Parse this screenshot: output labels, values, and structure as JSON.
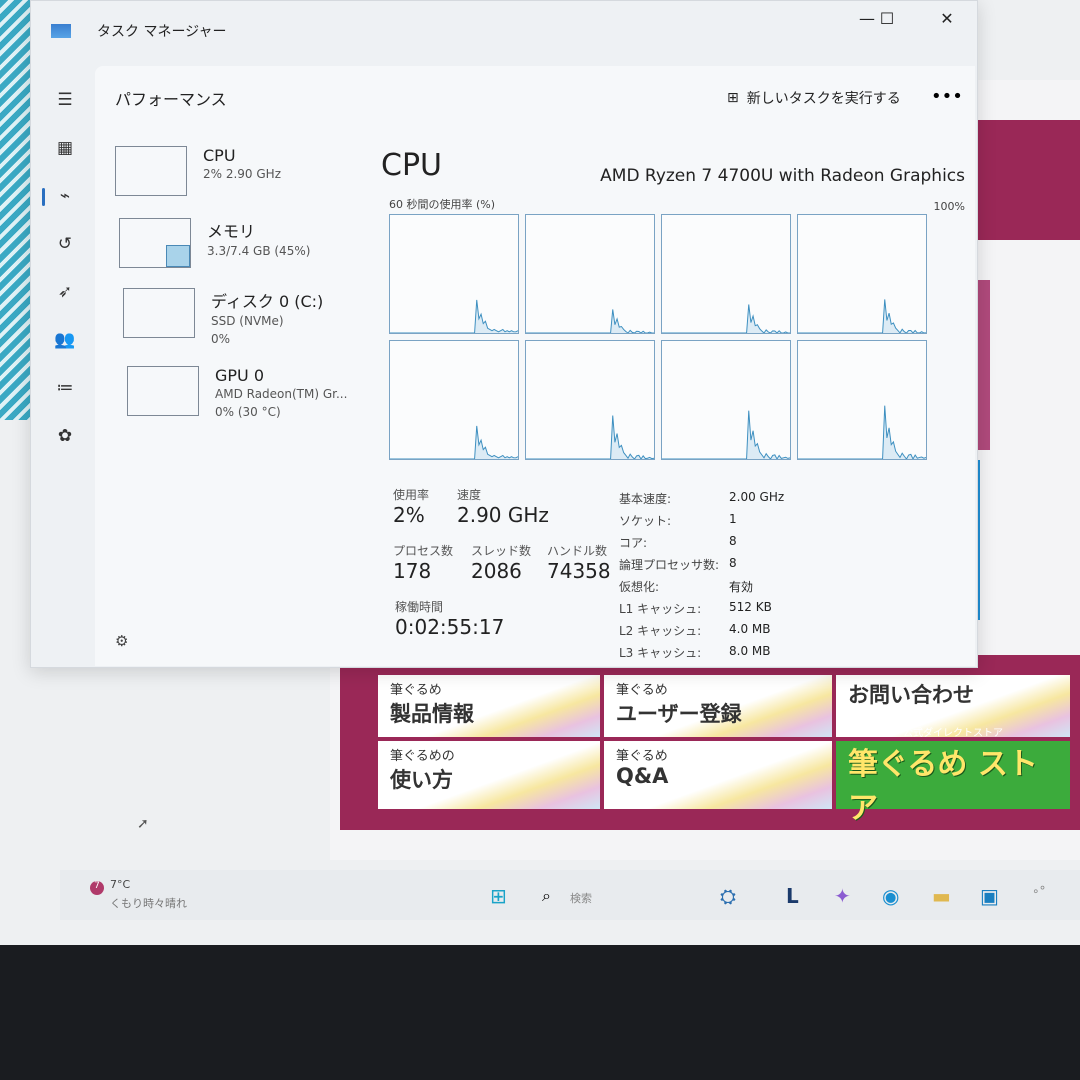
{
  "window": {
    "title": "タスク マネージャー",
    "minimize": "—",
    "maximize": "☐",
    "close": "✕"
  },
  "nav": [
    "hamburger-icon",
    "processes-icon",
    "performance-icon",
    "app-history-icon",
    "startup-icon",
    "users-icon",
    "details-icon",
    "services-icon"
  ],
  "panel": {
    "title": "パフォーマンス",
    "run_task": "新しいタスクを実行する",
    "more": "•••",
    "settings": "⚙"
  },
  "resources": [
    {
      "name": "CPU",
      "sub1": "2% 2.90 GHz",
      "sub2": ""
    },
    {
      "name": "メモリ",
      "sub1": "3.3/7.4 GB (45%)",
      "sub2": "",
      "fill": 45
    },
    {
      "name": "ディスク 0 (C:)",
      "sub1": "SSD (NVMe)",
      "sub2": "0%"
    },
    {
      "name": "GPU 0",
      "sub1": "AMD Radeon(TM) Gr...",
      "sub2": "0% (30 °C)"
    }
  ],
  "cpu": {
    "heading": "CPU",
    "model": "AMD Ryzen 7 4700U with Radeon Graphics",
    "graph_label": "60 秒間の使用率 (%)",
    "graph_max": "100%",
    "usage_label": "使用率",
    "usage": "2%",
    "speed_label": "速度",
    "speed": "2.90 GHz",
    "proc_label": "プロセス数",
    "proc": "178",
    "thread_label": "スレッド数",
    "thread": "2086",
    "handle_label": "ハンドル数",
    "handle": "74358",
    "uptime_label": "稼働時間",
    "uptime": "0:02:55:17",
    "specs": [
      [
        "基本速度:",
        "2.00 GHz"
      ],
      [
        "ソケット:",
        "1"
      ],
      [
        "コア:",
        "8"
      ],
      [
        "論理プロセッサ数:",
        "8"
      ],
      [
        "仮想化:",
        "有効"
      ],
      [
        "L1 キャッシュ:",
        "512 KB"
      ],
      [
        "L2 キャッシュ:",
        "4.0 MB"
      ],
      [
        "L3 キャッシュ:",
        "8.0 MB"
      ]
    ]
  },
  "core_usage": [
    [
      0,
      0,
      0,
      0,
      0,
      0,
      0,
      0,
      0,
      0,
      0,
      0,
      0,
      0,
      0,
      0,
      0,
      0,
      0,
      0,
      0,
      0,
      0,
      0,
      0,
      0,
      0,
      0,
      0,
      0,
      0,
      0,
      0,
      0,
      0,
      0,
      0,
      0,
      0,
      0,
      28,
      12,
      16,
      8,
      10,
      4,
      3,
      2,
      3,
      2,
      1,
      2,
      3,
      1,
      2,
      1,
      2,
      1,
      1,
      2
    ],
    [
      0,
      0,
      0,
      0,
      0,
      0,
      0,
      0,
      0,
      0,
      0,
      0,
      0,
      0,
      0,
      0,
      0,
      0,
      0,
      0,
      0,
      0,
      0,
      0,
      0,
      0,
      0,
      0,
      0,
      0,
      0,
      0,
      0,
      0,
      0,
      0,
      0,
      0,
      0,
      0,
      0,
      0,
      0,
      0,
      0,
      0,
      0,
      0,
      0,
      0,
      0,
      0,
      0,
      0,
      0,
      0,
      0,
      0,
      0,
      0
    ],
    [
      0,
      0,
      0,
      0,
      0,
      0,
      0,
      0,
      0,
      0,
      0,
      0,
      0,
      0,
      0,
      0,
      0,
      0,
      0,
      0,
      0,
      0,
      0,
      0,
      0,
      0,
      0,
      0,
      0,
      0,
      0,
      0,
      0,
      0,
      0,
      0,
      0,
      0,
      0,
      0,
      0,
      0,
      0,
      0,
      0,
      0,
      0,
      0,
      0,
      0,
      0,
      0,
      0,
      0,
      0,
      0,
      0,
      0,
      0,
      0
    ],
    [
      0,
      0,
      0,
      0,
      0,
      0,
      0,
      0,
      0,
      0,
      0,
      0,
      0,
      0,
      0,
      0,
      0,
      0,
      0,
      0,
      0,
      0,
      0,
      0,
      0,
      0,
      0,
      0,
      0,
      0,
      0,
      0,
      0,
      0,
      0,
      0,
      0,
      0,
      0,
      0,
      0,
      0,
      0,
      0,
      0,
      0,
      0,
      0,
      0,
      0,
      0,
      0,
      0,
      0,
      0,
      0,
      0,
      0,
      0,
      0
    ]
  ],
  "site": {
    "tiles": [
      {
        "s": "筆ぐるめ",
        "b": "製品情報"
      },
      {
        "s": "筆ぐるめ",
        "b": "ユーザー登録"
      },
      {
        "s": "",
        "b": "お問い合わせ"
      },
      {
        "s": "筆ぐるめの",
        "b": "使い方"
      },
      {
        "s": "筆ぐるめ",
        "b": "Q&A"
      },
      {
        "s": "公式ダイレクトストア",
        "b": "筆ぐるめ ストア",
        "store": true
      }
    ]
  },
  "taskbar": {
    "temp": "7°C",
    "weather": "くもり時々晴れ",
    "badge": "7",
    "search": "検索"
  },
  "colors": {
    "graph_line": "#3d8fc0",
    "accent": "#2a6fc0",
    "site_brand": "#9a2857"
  }
}
